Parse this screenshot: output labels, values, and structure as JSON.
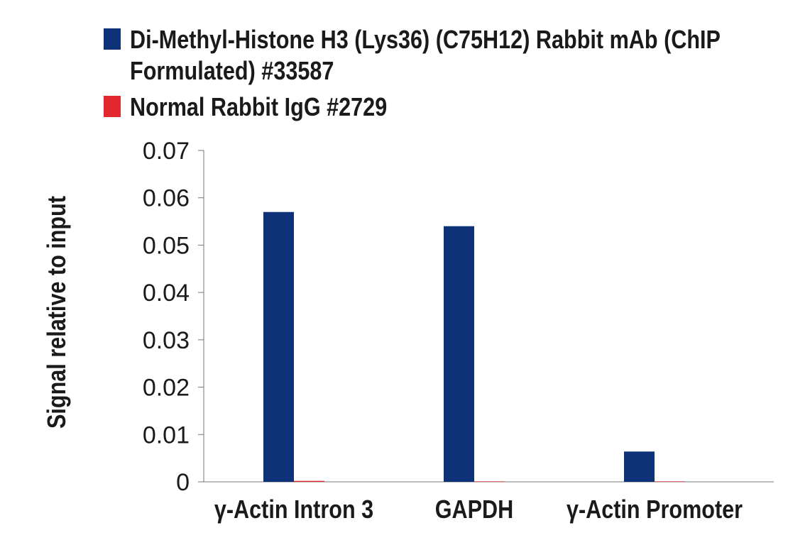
{
  "chart_data": {
    "type": "bar",
    "categories": [
      "γ-Actin Intron 3",
      "GAPDH",
      "γ-Actin Promoter"
    ],
    "series": [
      {
        "name": "Di-Methyl-Histone H3 (Lys36) (C75H12) Rabbit mAb (ChIP Formulated) #33587",
        "color": "#0d3278",
        "values": [
          0.057,
          0.054,
          0.0064
        ]
      },
      {
        "name": "Normal Rabbit IgG #2729",
        "color": "#e0282e",
        "values": [
          0.0002,
          0.0001,
          0.0001
        ]
      }
    ],
    "y_label": "Signal relative to input",
    "ylim": [
      0,
      0.07
    ],
    "yticks": [
      0,
      0.01,
      0.02,
      0.03,
      0.04,
      0.05,
      0.06,
      0.07
    ],
    "grid": false,
    "legend": "top"
  }
}
